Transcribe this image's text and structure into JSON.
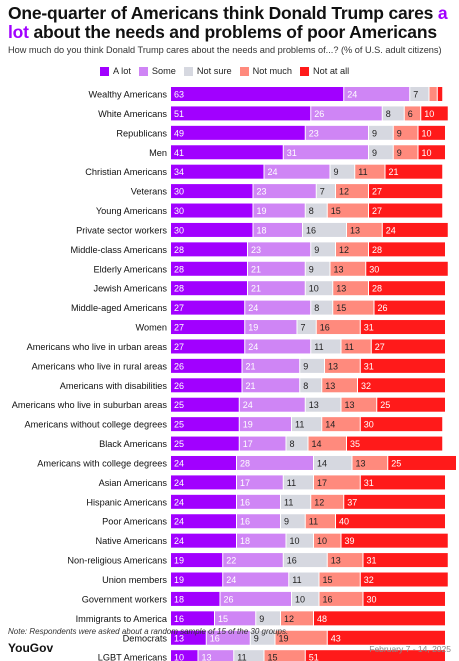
{
  "title_part1": "One-quarter of Americans think Donald Trump cares ",
  "title_highlight": "a lot",
  "title_part2": " about the needs and problems of poor Americans",
  "subtitle": "How much do you think Donald Trump cares about the needs and problems of...? (% of U.S. adult citizens)",
  "note": "Note: Respondents were asked about a random sample of 15 of the 30 groups.",
  "logo": "YouGov",
  "date": "February 7 - 14, 2025",
  "legend": [
    {
      "label": "A lot",
      "color": "#a100ff"
    },
    {
      "label": "Some",
      "color": "#cf85f5"
    },
    {
      "label": "Not sure",
      "color": "#d6d8e0"
    },
    {
      "label": "Not much",
      "color": "#ff8a7d"
    },
    {
      "label": "Not at all",
      "color": "#ff1a1a"
    }
  ],
  "chart_data": {
    "type": "bar",
    "stacked": true,
    "orientation": "horizontal",
    "unit": "%",
    "categories": [
      "Wealthy Americans",
      "White Americans",
      "Republicans",
      "Men",
      "Christian Americans",
      "Veterans",
      "Young Americans",
      "Private sector workers",
      "Middle-class Americans",
      "Elderly Americans",
      "Jewish Americans",
      "Middle-aged Americans",
      "Women",
      "Americans who live in urban areas",
      "Americans who live in rural areas",
      "Americans with disabilities",
      "Americans who live in suburban areas",
      "Americans without college degrees",
      "Black Americans",
      "Americans with college degrees",
      "Asian Americans",
      "Hispanic Americans",
      "Poor Americans",
      "Native Americans",
      "Non-religious Americans",
      "Union members",
      "Government workers",
      "Immigrants to America",
      "Democrats",
      "LGBT Americans"
    ],
    "series": [
      {
        "name": "A lot",
        "values": [
          63,
          51,
          49,
          41,
          34,
          30,
          30,
          30,
          28,
          28,
          28,
          27,
          27,
          27,
          26,
          26,
          25,
          25,
          25,
          24,
          24,
          24,
          24,
          24,
          19,
          19,
          18,
          16,
          13,
          10
        ]
      },
      {
        "name": "Some",
        "values": [
          24,
          26,
          23,
          31,
          24,
          23,
          19,
          18,
          23,
          21,
          21,
          24,
          19,
          24,
          21,
          21,
          24,
          19,
          17,
          28,
          17,
          16,
          16,
          18,
          22,
          24,
          26,
          15,
          16,
          13
        ]
      },
      {
        "name": "Not sure",
        "values": [
          7,
          8,
          9,
          9,
          9,
          7,
          8,
          16,
          9,
          9,
          10,
          8,
          7,
          11,
          9,
          8,
          13,
          11,
          8,
          14,
          11,
          11,
          9,
          10,
          16,
          11,
          10,
          9,
          9,
          11
        ]
      },
      {
        "name": "Not much",
        "values": [
          3,
          6,
          9,
          9,
          11,
          12,
          15,
          13,
          12,
          13,
          13,
          15,
          16,
          11,
          13,
          13,
          13,
          14,
          14,
          13,
          17,
          12,
          11,
          10,
          13,
          15,
          16,
          12,
          19,
          15
        ]
      },
      {
        "name": "Not at all",
        "values": [
          2,
          10,
          10,
          10,
          21,
          27,
          27,
          24,
          28,
          30,
          28,
          26,
          31,
          27,
          31,
          32,
          25,
          30,
          35,
          25,
          31,
          37,
          40,
          39,
          31,
          32,
          30,
          48,
          43,
          51
        ]
      }
    ],
    "xlim": [
      0,
      100
    ]
  }
}
